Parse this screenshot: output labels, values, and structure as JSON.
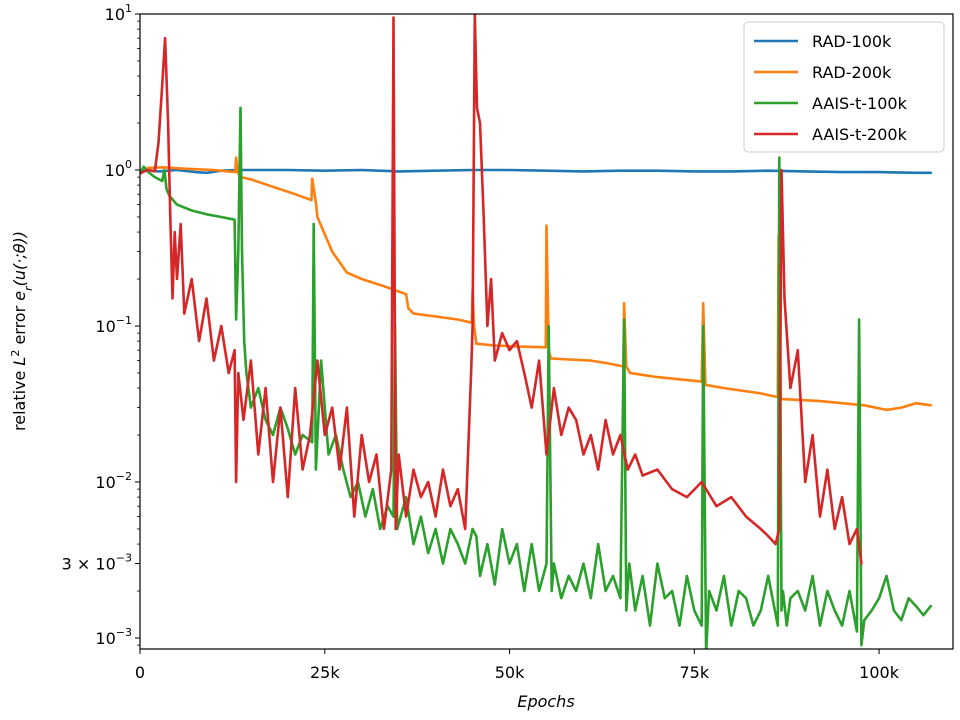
{
  "chart_data": {
    "type": "line",
    "title": "",
    "xlabel": "Epochs",
    "ylabel": "relative L² error e_r(u(·;θ))",
    "y_scale": "log",
    "xlim": [
      0,
      110000
    ],
    "ylim": [
      0.00085,
      10
    ],
    "grid": false,
    "legend_position": "top-right",
    "x_ticks": [
      {
        "value": 0,
        "label": "0"
      },
      {
        "value": 25000,
        "label": "25k"
      },
      {
        "value": 50000,
        "label": "50k"
      },
      {
        "value": 75000,
        "label": "75k"
      },
      {
        "value": 100000,
        "label": "100k"
      }
    ],
    "y_ticks": [
      {
        "value": 0.001,
        "base": "10",
        "exp": "−3"
      },
      {
        "value": 0.003,
        "mant": "3 × ",
        "base": "10",
        "exp": "−3"
      },
      {
        "value": 0.01,
        "base": "10",
        "exp": "−2"
      },
      {
        "value": 0.1,
        "base": "10",
        "exp": "−1"
      },
      {
        "value": 1,
        "base": "10",
        "exp": "0"
      },
      {
        "value": 10,
        "base": "10",
        "exp": "1"
      }
    ],
    "series": [
      {
        "name": "RAD-100k",
        "color": "#1f77b4",
        "x": [
          0,
          1000,
          2500,
          5000,
          7500,
          9000,
          11000,
          13000,
          15000,
          20000,
          25000,
          30000,
          35000,
          40000,
          45000,
          50000,
          55000,
          60000,
          65000,
          70000,
          75000,
          80000,
          85000,
          90000,
          95000,
          100000,
          105000,
          107000
        ],
        "y": [
          0.97,
          1.0,
          0.98,
          1.0,
          0.97,
          0.96,
          0.99,
          1.0,
          1.0,
          1.0,
          0.99,
          1.0,
          0.98,
          0.99,
          1.0,
          1.0,
          0.99,
          0.98,
          0.99,
          0.99,
          0.98,
          0.98,
          0.99,
          0.98,
          0.97,
          0.97,
          0.96,
          0.96
        ]
      },
      {
        "name": "RAD-200k",
        "color": "#ff7f0e",
        "x": [
          1000,
          3000,
          6000,
          10000,
          12900,
          13000,
          13200,
          13600,
          15000,
          18000,
          21000,
          23200,
          23300,
          23800,
          24000,
          26000,
          28000,
          30000,
          33000,
          36000,
          36300,
          37000,
          40000,
          43000,
          44900,
          45000,
          45200,
          45500,
          48000,
          51000,
          54900,
          55000,
          55300,
          55600,
          58000,
          61000,
          63000,
          65400,
          65500,
          65800,
          66300,
          70000,
          74000,
          76000,
          76200,
          76500,
          79000,
          84000,
          86300,
          86400,
          86700,
          87000,
          92000,
          95000,
          98000,
          101000,
          103000,
          105000,
          107000
        ],
        "y": [
          1.03,
          1.04,
          1.02,
          1.0,
          0.97,
          1.2,
          0.97,
          0.9,
          0.87,
          0.78,
          0.7,
          0.64,
          0.88,
          0.62,
          0.5,
          0.3,
          0.22,
          0.2,
          0.18,
          0.16,
          0.13,
          0.12,
          0.115,
          0.11,
          0.105,
          0.17,
          0.1,
          0.077,
          0.075,
          0.074,
          0.073,
          0.44,
          0.07,
          0.062,
          0.061,
          0.06,
          0.058,
          0.055,
          0.14,
          0.055,
          0.05,
          0.047,
          0.045,
          0.044,
          0.14,
          0.042,
          0.04,
          0.037,
          0.035,
          0.38,
          0.034,
          0.034,
          0.033,
          0.032,
          0.031,
          0.029,
          0.03,
          0.032,
          0.031
        ]
      },
      {
        "name": "AAIS-t-100k",
        "color": "#2ca02c",
        "x": [
          0,
          500,
          1000,
          2000,
          3000,
          3300,
          3600,
          4000,
          5000,
          7000,
          9000,
          11000,
          12800,
          13000,
          13300,
          13600,
          13800,
          14100,
          14400,
          15000,
          16000,
          17000,
          18000,
          19000,
          20000,
          21000,
          22000,
          23300,
          23500,
          23800,
          24500,
          25500,
          26500,
          27500,
          28500,
          29500,
          30500,
          31500,
          32500,
          33500,
          34300,
          34500,
          34800,
          36000,
          37000,
          38000,
          39000,
          40000,
          41000,
          42000,
          43000,
          44000,
          45000,
          45500,
          46000,
          47000,
          48000,
          49000,
          50000,
          51000,
          52000,
          53000,
          54000,
          55000,
          55300,
          55700,
          56000,
          57000,
          58000,
          59000,
          60000,
          61000,
          62000,
          63000,
          64000,
          65000,
          65500,
          65800,
          66200,
          67000,
          68000,
          69000,
          70000,
          71000,
          72000,
          73000,
          74000,
          75000,
          76000,
          76200,
          76600,
          77000,
          78000,
          79000,
          80000,
          81000,
          82000,
          83000,
          84000,
          85000,
          86300,
          86500,
          86800,
          87000,
          87500,
          88000,
          89000,
          90000,
          91000,
          92000,
          93000,
          94000,
          95000,
          96000,
          97000,
          97300,
          97600,
          98000,
          99000,
          100000,
          101000,
          102000,
          103000,
          104000,
          105000,
          106000,
          107000
        ],
        "y": [
          0.95,
          1.05,
          0.98,
          0.9,
          0.85,
          1.0,
          0.75,
          0.68,
          0.6,
          0.55,
          0.52,
          0.5,
          0.48,
          0.11,
          0.3,
          2.5,
          0.3,
          0.08,
          0.05,
          0.03,
          0.04,
          0.025,
          0.02,
          0.03,
          0.022,
          0.015,
          0.02,
          0.018,
          0.45,
          0.012,
          0.06,
          0.015,
          0.02,
          0.012,
          0.008,
          0.01,
          0.006,
          0.009,
          0.005,
          0.007,
          0.006,
          0.1,
          0.005,
          0.008,
          0.004,
          0.006,
          0.0035,
          0.005,
          0.003,
          0.005,
          0.004,
          0.003,
          0.005,
          0.0045,
          0.0025,
          0.004,
          0.0022,
          0.005,
          0.003,
          0.004,
          0.002,
          0.004,
          0.002,
          0.003,
          0.1,
          0.002,
          0.003,
          0.0018,
          0.0025,
          0.002,
          0.003,
          0.0018,
          0.004,
          0.002,
          0.0025,
          0.0018,
          0.11,
          0.0015,
          0.003,
          0.0015,
          0.0025,
          0.0012,
          0.003,
          0.0018,
          0.002,
          0.0012,
          0.0025,
          0.0015,
          0.0012,
          0.1,
          0.0008,
          0.002,
          0.0015,
          0.0025,
          0.0012,
          0.002,
          0.0018,
          0.0012,
          0.0015,
          0.0025,
          0.0012,
          1.2,
          0.0015,
          0.002,
          0.0012,
          0.0018,
          0.002,
          0.0015,
          0.0025,
          0.0012,
          0.002,
          0.0015,
          0.0012,
          0.002,
          0.0011,
          0.11,
          0.0009,
          0.0013,
          0.0015,
          0.0018,
          0.0025,
          0.0015,
          0.0013,
          0.0018,
          0.0016,
          0.0014,
          0.0016
        ],
        "spike_x": [
          3300,
          13600,
          23500,
          34500,
          55300,
          65500,
          76200,
          86500,
          97300
        ]
      },
      {
        "name": "AAIS-t-200k",
        "color": "#d62728",
        "x": [
          0,
          1000,
          2000,
          2500,
          3000,
          3400,
          3800,
          4100,
          4400,
          4700,
          5000,
          5500,
          6000,
          7000,
          8000,
          9000,
          10000,
          11000,
          12000,
          12800,
          13000,
          13300,
          14000,
          15000,
          16000,
          17000,
          18000,
          19000,
          20000,
          21000,
          22000,
          23000,
          24000,
          25000,
          26000,
          27000,
          28000,
          29000,
          30000,
          31000,
          32000,
          33000,
          34000,
          34300,
          34600,
          35000,
          36000,
          37000,
          38000,
          39000,
          40000,
          41000,
          42000,
          43000,
          44000,
          44800,
          45000,
          45300,
          45600,
          46000,
          46500,
          47000,
          47500,
          48000,
          49000,
          50000,
          51000,
          52000,
          53000,
          54000,
          55000,
          56000,
          57000,
          58000,
          59000,
          60000,
          61000,
          62000,
          63000,
          64000,
          65000,
          66000,
          67000,
          68000,
          70000,
          72000,
          74000,
          76000,
          78000,
          80000,
          82000,
          84000,
          85000,
          86000,
          86500,
          86800,
          87200,
          88000,
          89000,
          90000,
          91000,
          92000,
          93000,
          94000,
          95000,
          96000,
          97000,
          97600
        ],
        "y": [
          0.95,
          1.0,
          0.98,
          1.5,
          3.5,
          7.0,
          2.0,
          0.5,
          0.15,
          0.4,
          0.2,
          0.45,
          0.12,
          0.2,
          0.08,
          0.15,
          0.06,
          0.1,
          0.05,
          0.07,
          0.01,
          0.05,
          0.025,
          0.06,
          0.015,
          0.04,
          0.01,
          0.03,
          0.008,
          0.04,
          0.012,
          0.02,
          0.06,
          0.02,
          0.03,
          0.012,
          0.03,
          0.006,
          0.02,
          0.01,
          0.015,
          0.005,
          0.012,
          9.5,
          0.005,
          0.015,
          0.006,
          0.012,
          0.008,
          0.01,
          0.006,
          0.012,
          0.007,
          0.009,
          0.005,
          0.05,
          0.1,
          10,
          2.5,
          2.0,
          0.5,
          0.1,
          0.2,
          0.06,
          0.09,
          0.07,
          0.08,
          0.05,
          0.03,
          0.06,
          0.015,
          0.04,
          0.02,
          0.03,
          0.025,
          0.015,
          0.02,
          0.012,
          0.025,
          0.015,
          0.02,
          0.012,
          0.015,
          0.011,
          0.012,
          0.009,
          0.008,
          0.01,
          0.007,
          0.008,
          0.006,
          0.005,
          0.0045,
          0.004,
          0.005,
          1.0,
          0.15,
          0.04,
          0.07,
          0.01,
          0.02,
          0.006,
          0.012,
          0.005,
          0.008,
          0.004,
          0.005,
          0.003
        ]
      }
    ]
  }
}
